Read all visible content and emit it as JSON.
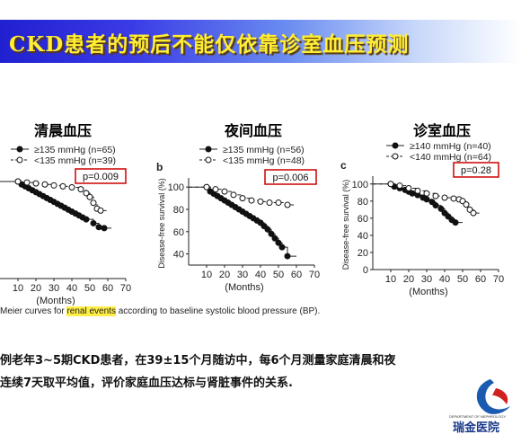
{
  "slide": {
    "title": "CKD患者的预后不能仅依靠诊室血压预测",
    "caption_prefix": "Meier curves for ",
    "caption_highlight": "renal events",
    "caption_suffix": " according to baseline systolic blood pressure (BP).",
    "body_line1": "例老年3~5期CKD患者，在39±15个月随访中，每6个月测量家庭清晨和夜",
    "body_line2": "连续7天取平均值，评价家庭血压达标与肾脏事件的关系.",
    "logo_dept": "DEPARTMENT OF NEPHROLOGY",
    "logo_name": "瑞金医院"
  },
  "colors": {
    "title_gradient_start": "#2020d0",
    "title_text": "#ffee33",
    "pvalue_box": "#cc0000",
    "caption_highlight": "#ffee44"
  },
  "chart_data": [
    {
      "type": "line",
      "heading": "清晨血压",
      "panel_letter": "",
      "ylabel": "",
      "xlabel": "(Months)",
      "xticks": [
        10,
        20,
        30,
        40,
        50,
        60,
        70
      ],
      "yticks": [],
      "xlim": [
        0,
        70
      ],
      "ylim": [
        0,
        100
      ],
      "pvalue": "p=0.009",
      "series": [
        {
          "name": "≥135 mmHg (n=65)",
          "style": "filled",
          "x": [
            0,
            10,
            12,
            14,
            16,
            18,
            20,
            22,
            24,
            26,
            28,
            30,
            32,
            34,
            36,
            38,
            40,
            42,
            44,
            46,
            48,
            52,
            55,
            58,
            62
          ],
          "y": [
            100,
            100,
            97,
            95,
            93,
            91,
            89,
            87,
            85,
            83,
            81,
            79,
            77,
            75,
            73,
            71,
            69,
            67,
            65,
            63,
            61,
            57,
            53,
            52,
            52
          ]
        },
        {
          "name": "<135 mmHg (n=39)",
          "style": "open",
          "x": [
            0,
            10,
            15,
            20,
            25,
            30,
            35,
            40,
            45,
            48,
            50,
            52,
            54,
            56,
            60
          ],
          "y": [
            100,
            100,
            99,
            98,
            97,
            96,
            95,
            94,
            92,
            88,
            84,
            78,
            72,
            70,
            70
          ]
        }
      ]
    },
    {
      "type": "line",
      "heading": "夜间血压",
      "panel_letter": "b",
      "ylabel": "Disease-free survival (%)",
      "xlabel": "(Months)",
      "xticks": [
        10,
        20,
        30,
        40,
        50,
        60,
        70
      ],
      "yticks": [
        40,
        60,
        80,
        100
      ],
      "xlim": [
        0,
        70
      ],
      "ylim": [
        30,
        105
      ],
      "pvalue": "p=0.006",
      "series": [
        {
          "name": "≥135 mmHg (n=56)",
          "style": "filled",
          "x": [
            0,
            10,
            12,
            14,
            16,
            18,
            20,
            22,
            24,
            26,
            28,
            30,
            32,
            34,
            36,
            38,
            40,
            42,
            44,
            46,
            48,
            50,
            52,
            55,
            60
          ],
          "y": [
            100,
            100,
            96,
            94,
            92,
            90,
            88,
            86,
            84,
            82,
            80,
            78,
            76,
            74,
            72,
            70,
            68,
            65,
            62,
            58,
            54,
            50,
            46,
            38,
            38
          ]
        },
        {
          "name": "<135 mmHg (n=48)",
          "style": "open",
          "x": [
            0,
            10,
            15,
            20,
            25,
            30,
            35,
            40,
            45,
            50,
            55,
            60
          ],
          "y": [
            100,
            100,
            98,
            96,
            93,
            90,
            88,
            87,
            86,
            86,
            84,
            84
          ]
        }
      ]
    },
    {
      "type": "line",
      "heading": "诊室血压",
      "panel_letter": "c",
      "ylabel": "Disease-free survival (%)",
      "xlabel": "(Months)",
      "xticks": [
        10,
        20,
        30,
        40,
        50,
        60,
        70
      ],
      "yticks": [
        0,
        20,
        40,
        60,
        80,
        100
      ],
      "xlim": [
        0,
        70
      ],
      "ylim": [
        0,
        105
      ],
      "pvalue": "p=0.28",
      "series": [
        {
          "name": "≥140 mmHg (n=40)",
          "style": "filled",
          "x": [
            0,
            10,
            12,
            15,
            18,
            20,
            22,
            25,
            28,
            30,
            33,
            35,
            38,
            40,
            42,
            44,
            46,
            50
          ],
          "y": [
            100,
            100,
            97,
            95,
            93,
            91,
            89,
            87,
            84,
            82,
            79,
            75,
            71,
            66,
            62,
            58,
            55,
            55
          ]
        },
        {
          "name": "<140 mmHg (n=64)",
          "style": "open",
          "x": [
            0,
            10,
            15,
            20,
            25,
            30,
            35,
            40,
            45,
            48,
            50,
            52,
            54,
            56,
            60
          ],
          "y": [
            100,
            100,
            98,
            95,
            92,
            89,
            86,
            84,
            83,
            82,
            80,
            76,
            70,
            66,
            66
          ]
        }
      ]
    }
  ]
}
